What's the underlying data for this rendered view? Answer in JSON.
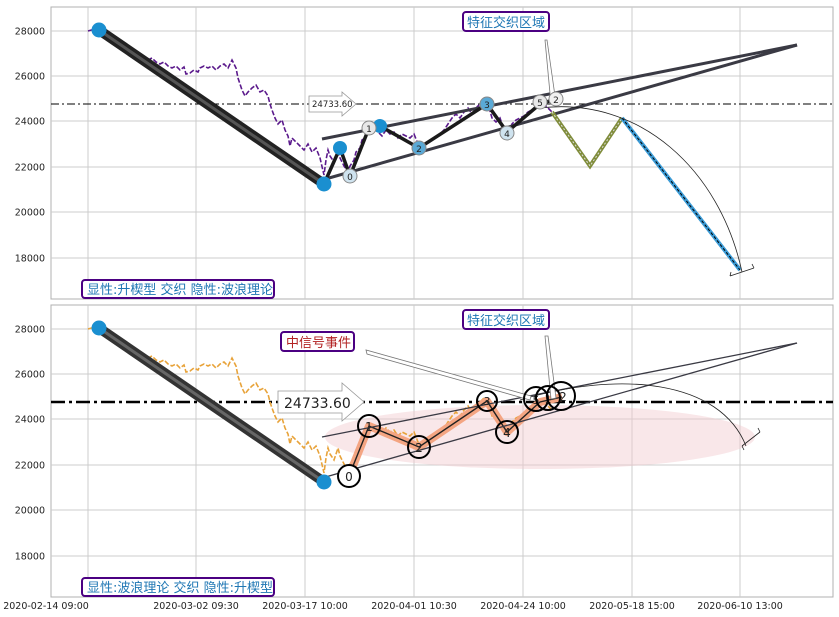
{
  "colors": {
    "panel_border": "#b0b0b0",
    "grid": "#cccccc",
    "box_border": "#4b0082",
    "box_text_blue": "#1f77b4",
    "box_text_red": "#b22222",
    "dash_line": "#000000",
    "price_top": "#5b1a8c",
    "price_bottom": "#e8a33a",
    "wave_dark": "#333333",
    "node_blue": "#1a8fd0",
    "salmon": "#f4a582",
    "pink_area": "#f2c9cf",
    "olive": "#7f8c3a",
    "sky": "#3b9bd6"
  },
  "x_ticks": [
    "2020-02-14 09:00",
    "2020-03-02 09:30",
    "2020-03-17 10:00",
    "2020-04-01 10:30",
    "2020-04-24 10:00",
    "2020-05-18 15:00",
    "2020-06-10 13:00"
  ],
  "y_ticks": [
    "18000",
    "20000",
    "22000",
    "24000",
    "26000",
    "28000"
  ],
  "panels": {
    "top": {
      "label_bottom": "显性:升楔型 交织 隐性:波浪理论",
      "label_top": "特征交织区域",
      "price_label": "24733.60",
      "wave_labels": [
        "0",
        "1",
        "2",
        "3",
        "4",
        "5",
        "2"
      ]
    },
    "bottom": {
      "label_bottom": "显性:波浪理论 交织 隐性:升楔型",
      "label_top": "特征交织区域",
      "label_event": "中信号事件",
      "price_label": "24733.60",
      "wave_labels": [
        "0",
        "1",
        "2",
        "3",
        "4",
        "5",
        "1",
        "2"
      ]
    }
  },
  "chart_data": [
    {
      "type": "line",
      "title": "",
      "x_labels": [
        "2020-02-14 09:00",
        "2020-03-02 09:30",
        "2020-03-17 10:00",
        "2020-04-01 10:30",
        "2020-04-24 10:00",
        "2020-05-18 15:00",
        "2020-06-10 13:00"
      ],
      "ylim": [
        16500,
        29200
      ],
      "hline": 24733.6,
      "annotations": [
        "显性:升楔型 交织 隐性:波浪理论",
        "特征交织区域"
      ],
      "trend_points": [
        {
          "x": "2020-02-15",
          "y": 28000
        },
        {
          "x": "2020-03-21",
          "y": 21150
        },
        {
          "x": "2020-03-24",
          "y": 22800
        },
        {
          "x": "2020-03-28",
          "y": 23700
        },
        {
          "x": "2020-04-10",
          "y": 22850
        },
        {
          "x": "2020-04-26",
          "y": 24700
        },
        {
          "x": "2020-04-30",
          "y": 23600
        },
        {
          "x": "2020-05-08",
          "y": 24800
        }
      ]
    },
    {
      "type": "line",
      "title": "",
      "x_labels": [
        "2020-02-14 09:00",
        "2020-03-02 09:30",
        "2020-03-17 10:00",
        "2020-04-01 10:30",
        "2020-04-24 10:00",
        "2020-05-18 15:00",
        "2020-06-10 13:00"
      ],
      "ylim": [
        16500,
        29200
      ],
      "hline": 24733.6,
      "annotations": [
        "显性:波浪理论 交织 隐性:升楔型",
        "特征交织区域",
        "中信号事件"
      ],
      "trend_points": [
        {
          "x": "2020-02-15",
          "y": 28000
        },
        {
          "x": "2020-03-21",
          "y": 21150
        }
      ]
    }
  ]
}
